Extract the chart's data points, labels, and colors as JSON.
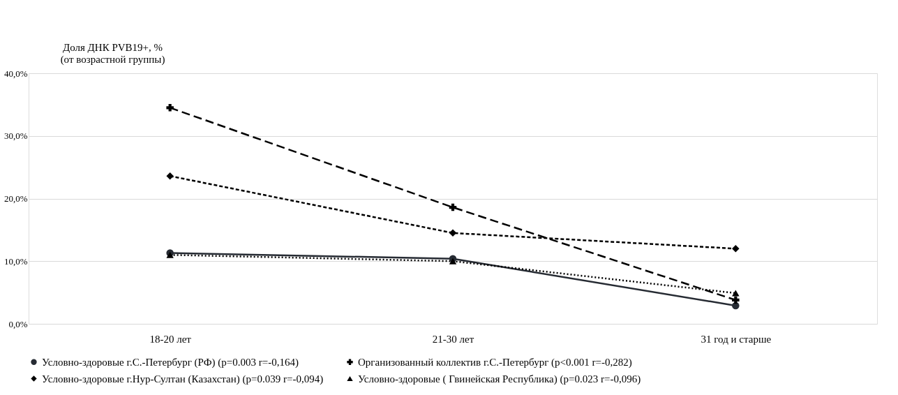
{
  "chart_data": {
    "type": "line",
    "ylabel": "Доля ДНК PVB19+, %\n(от возрастной группы)",
    "categories": [
      "18-20 лет",
      "21-30 лет",
      "31 год и старше"
    ],
    "ylim": [
      0,
      40
    ],
    "yticks": [
      {
        "value": 0,
        "label": "0,0%"
      },
      {
        "value": 10,
        "label": "10,0%"
      },
      {
        "value": 20,
        "label": "20,0%"
      },
      {
        "value": 30,
        "label": "30,0%"
      },
      {
        "value": 40,
        "label": "40,0%"
      }
    ],
    "grid": "y",
    "legend": "bottom",
    "series": [
      {
        "name": "Условно-здоровые г.С.-Петербург (РФ) (p=0.003 r=-0,164)",
        "color": "#262b33",
        "marker": "circle",
        "line_style": "solid",
        "values": [
          11.3,
          10.4,
          2.9
        ]
      },
      {
        "name": "Организованный  коллектив г.С.-Петербург (p<0.001 r=-0,282)",
        "color": "#000000",
        "marker": "cross",
        "line_style": "dashed",
        "values": [
          34.5,
          18.6,
          3.8
        ]
      },
      {
        "name": "Условно-здоровые г.Нур-Султан (Казахстан) (p=0.039 r=-0,094)",
        "color": "#000000",
        "marker": "diamond",
        "line_style": "dashed",
        "values": [
          23.6,
          14.5,
          12.0
        ]
      },
      {
        "name": "Условно-здоровые ( Гвинейская Республика) (p=0.023  r=-0,096)",
        "color": "#000000",
        "marker": "triangle",
        "line_style": "dotted",
        "values": [
          11.0,
          10.0,
          4.9
        ]
      }
    ]
  }
}
